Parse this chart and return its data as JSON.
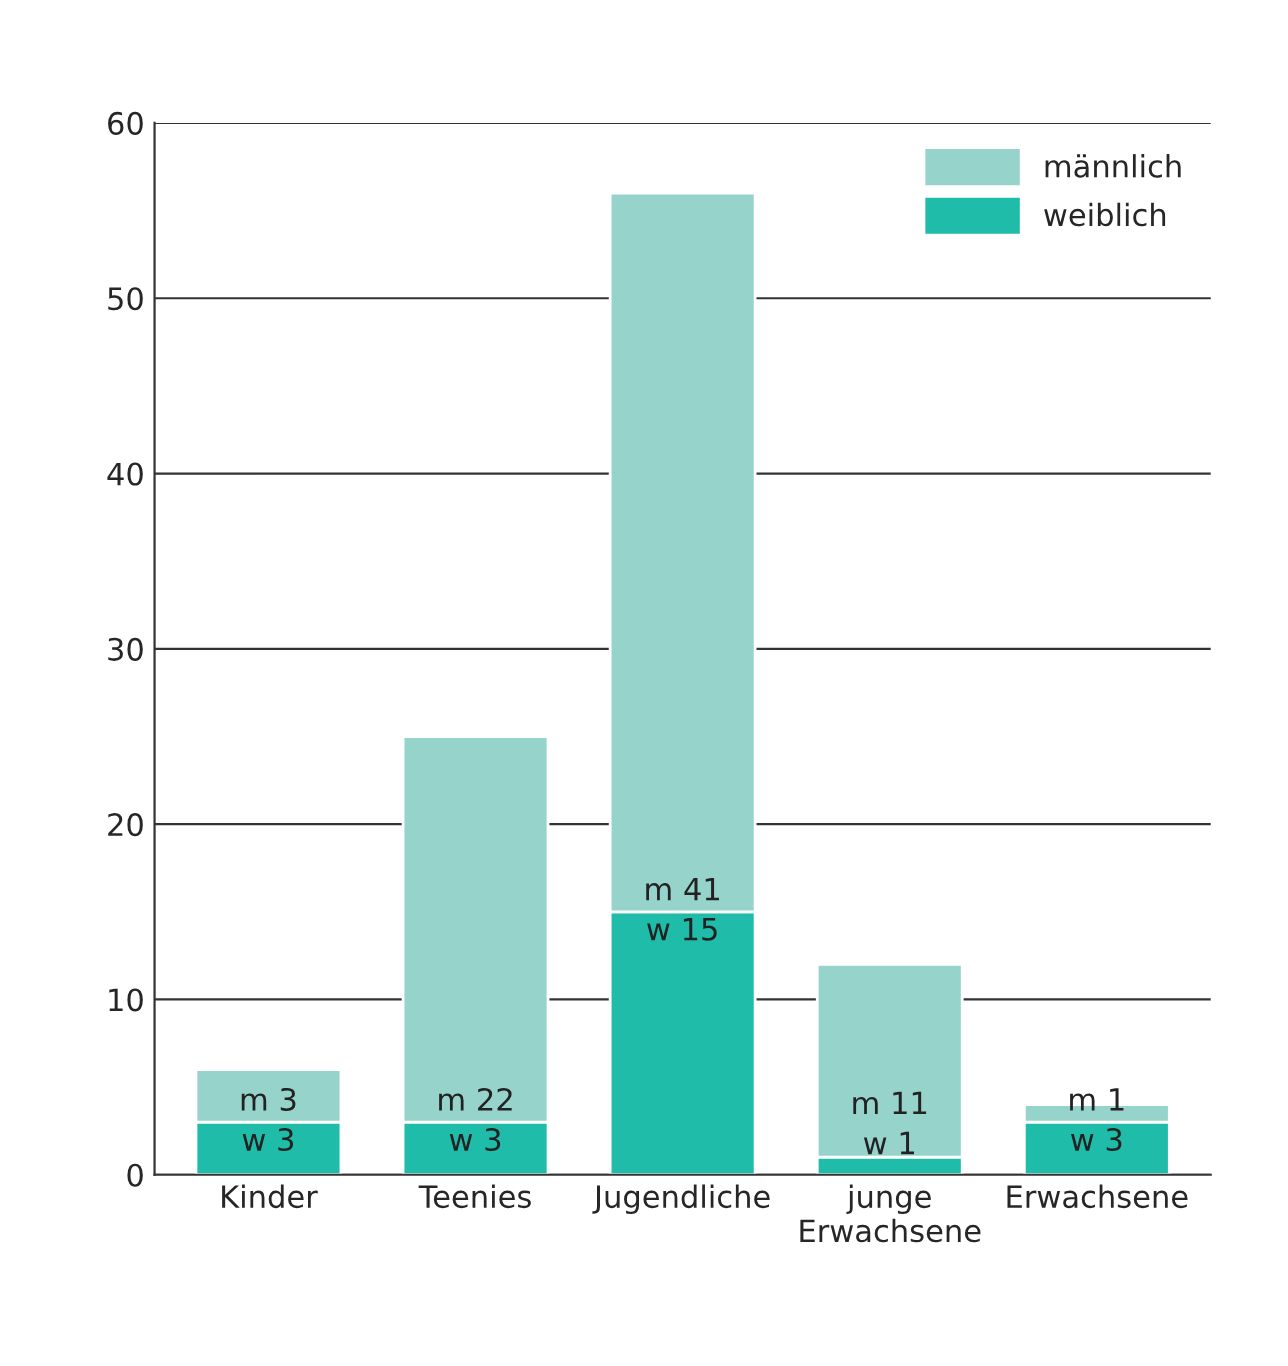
{
  "chart_data": {
    "type": "bar",
    "stacked": true,
    "categories": [
      "Kinder",
      "Teenies",
      "Jugendliche",
      "junge\nErwachsene",
      "Erwachsene"
    ],
    "series": [
      {
        "name": "weiblich",
        "color": "#20bcaa",
        "values": [
          3,
          3,
          15,
          1,
          3
        ],
        "value_labels": [
          "w 3",
          "w 3",
          "w 15",
          "w 1",
          "w 3"
        ]
      },
      {
        "name": "männlich",
        "color": "#96d4cb",
        "values": [
          3,
          22,
          41,
          11,
          1
        ],
        "value_labels": [
          "m 3",
          "m 22",
          "m 41",
          "m 11",
          "m 1"
        ]
      }
    ],
    "ylim": [
      0,
      60
    ],
    "yticks": [
      0,
      10,
      20,
      30,
      40,
      50,
      60
    ],
    "grid": "y",
    "legend": "top right"
  }
}
